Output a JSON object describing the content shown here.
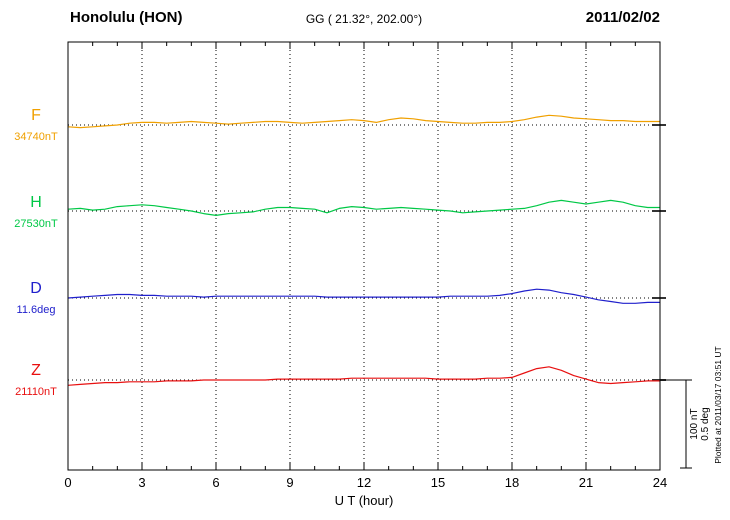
{
  "header": {
    "station": "Honolulu (HON)",
    "coords": "GG ( 21.32°, 202.00°)",
    "date": "2011/02/02"
  },
  "scale_bar": {
    "line1": "100 nT",
    "line2": "0.5 deg"
  },
  "plotted_at": "Plotted at 2011/03/17 03:51 UT",
  "chart_data": {
    "type": "line",
    "title": "Honolulu (HON) magnetogram, 2011/02/02",
    "xlabel": "U T (hour)",
    "x_range": [
      0,
      24
    ],
    "x_ticks": [
      0,
      3,
      6,
      9,
      12,
      15,
      18,
      21,
      24
    ],
    "x_step_hours": 0.5,
    "grid": {
      "vertical_dotted_every_hours": 3,
      "horizontal_dotted_baselines": true
    },
    "scale_bar": {
      "bar_nT": 100,
      "bar_deg": 0.5
    },
    "series": [
      {
        "name": "F",
        "units": "nT",
        "baseline": 34740,
        "baseline_label": "34740nT",
        "color": "#f0a000",
        "deviations": [
          -2,
          -3,
          -2,
          -1,
          0,
          2,
          3,
          3,
          2,
          3,
          4,
          3,
          2,
          1,
          2,
          3,
          4,
          4,
          3,
          2,
          3,
          4,
          5,
          6,
          5,
          3,
          6,
          8,
          7,
          5,
          4,
          3,
          2,
          2,
          3,
          3,
          4,
          6,
          9,
          11,
          10,
          8,
          7,
          6,
          5,
          5,
          4,
          4,
          4
        ]
      },
      {
        "name": "H",
        "units": "nT",
        "baseline": 27530,
        "baseline_label": "27530nT",
        "color": "#00c846",
        "deviations": [
          2,
          3,
          1,
          2,
          5,
          6,
          7,
          6,
          4,
          2,
          0,
          -3,
          -5,
          -3,
          -2,
          -1,
          2,
          4,
          4,
          3,
          2,
          -2,
          3,
          5,
          4,
          2,
          3,
          4,
          3,
          2,
          1,
          0,
          -2,
          -1,
          0,
          1,
          2,
          3,
          6,
          10,
          12,
          10,
          8,
          10,
          12,
          10,
          6,
          4,
          4
        ]
      },
      {
        "name": "D",
        "units": "deg",
        "baseline": 11.6,
        "baseline_label": "11.6deg",
        "color": "#2020cc",
        "deviations": [
          0,
          0.005,
          0.01,
          0.015,
          0.02,
          0.02,
          0.015,
          0.015,
          0.01,
          0.01,
          0.01,
          0.005,
          0.01,
          0.01,
          0.01,
          0.01,
          0.01,
          0.01,
          0.01,
          0.01,
          0.01,
          0.005,
          0.005,
          0.005,
          0.005,
          0.005,
          0.005,
          0.005,
          0.005,
          0.005,
          0.005,
          0.01,
          0.01,
          0.01,
          0.01,
          0.015,
          0.025,
          0.04,
          0.05,
          0.045,
          0.03,
          0.02,
          0.005,
          -0.01,
          -0.02,
          -0.03,
          -0.03,
          -0.025,
          -0.025
        ]
      },
      {
        "name": "Z",
        "units": "nT",
        "baseline": 21110,
        "baseline_label": "21110nT",
        "color": "#e81010",
        "deviations": [
          -6,
          -5,
          -4,
          -3,
          -3,
          -2,
          -2,
          -2,
          -1,
          -1,
          -1,
          0,
          0,
          0,
          0,
          0,
          0,
          1,
          1,
          1,
          1,
          1,
          1,
          2,
          2,
          2,
          2,
          2,
          2,
          2,
          1,
          1,
          1,
          1,
          2,
          2,
          3,
          8,
          13,
          15,
          11,
          5,
          1,
          -3,
          -4,
          -3,
          -2,
          -1,
          -1
        ]
      }
    ]
  }
}
